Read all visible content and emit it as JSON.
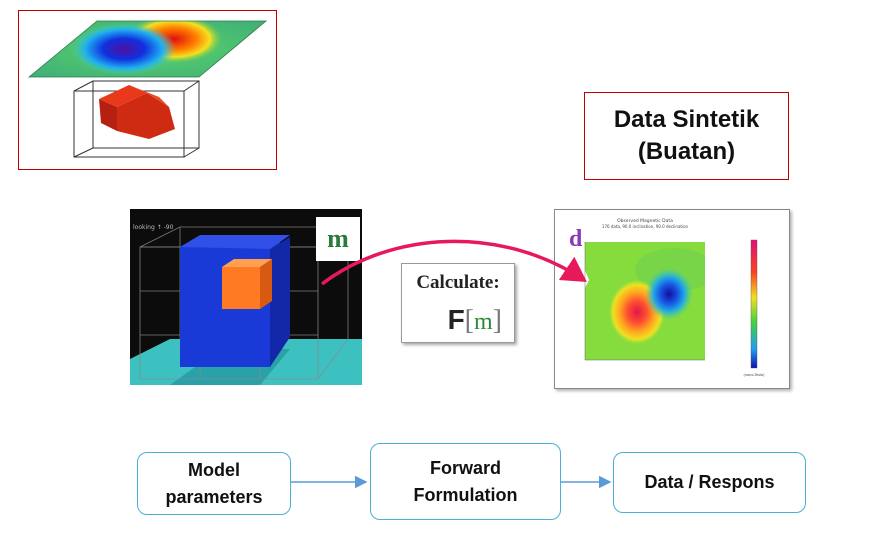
{
  "title": {
    "line1": "Data Sintetik",
    "line2": "(Buatan)"
  },
  "model_panel": {
    "badge": "m",
    "corner_text": "looking ↑ -90"
  },
  "calculate": {
    "label": "Calculate:",
    "function_letter": "F",
    "bracket_open": "[",
    "argument": "m",
    "bracket_close": "]"
  },
  "data_panel": {
    "badge": "d",
    "map_title_line1": "Observed Magnetic Data",
    "map_title_line2": "176 data, 90.0 inclination, 90.0 declination",
    "colorbar_unit": "(nano-Tesla)"
  },
  "flow": {
    "model_parameters": [
      "Model",
      "parameters"
    ],
    "forward_formulation": [
      "Forward",
      "Formulation"
    ],
    "data_respons": "Data / Respons"
  },
  "colors": {
    "frame_red": "#c00000",
    "flow_border": "#4bb0d6",
    "arrow_pink": "#e8195a",
    "flow_arrow": "#5b9bd5"
  }
}
